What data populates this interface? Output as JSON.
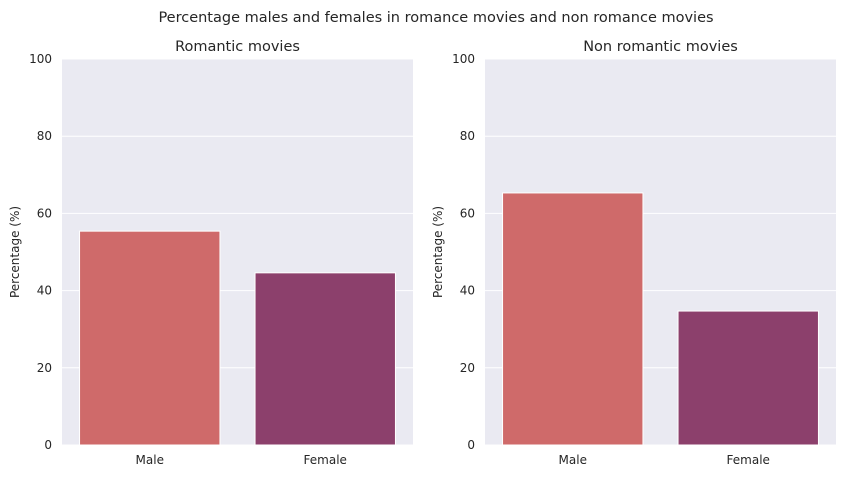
{
  "chart_data": {
    "title": "Percentage males and females in romance movies and non romance movies",
    "charts": [
      {
        "type": "bar",
        "title": "Romantic movies",
        "xlabel": "",
        "ylabel": "Percentage (%)",
        "categories": [
          "Male",
          "Female"
        ],
        "values": [
          55.4,
          44.6
        ],
        "colors": [
          "#cf6a6a",
          "#8c406c"
        ],
        "ylim": [
          0,
          100
        ],
        "yticks": [
          0,
          20,
          40,
          60,
          80,
          100
        ],
        "grid": true,
        "background": "#eaeaf2"
      },
      {
        "type": "bar",
        "title": "Non romantic movies",
        "xlabel": "",
        "ylabel": "Percentage (%)",
        "categories": [
          "Male",
          "Female"
        ],
        "values": [
          65.3,
          34.7
        ],
        "colors": [
          "#cf6a6a",
          "#8c406c"
        ],
        "ylim": [
          0,
          100
        ],
        "yticks": [
          0,
          20,
          40,
          60,
          80,
          100
        ],
        "grid": true,
        "background": "#eaeaf2"
      }
    ]
  }
}
